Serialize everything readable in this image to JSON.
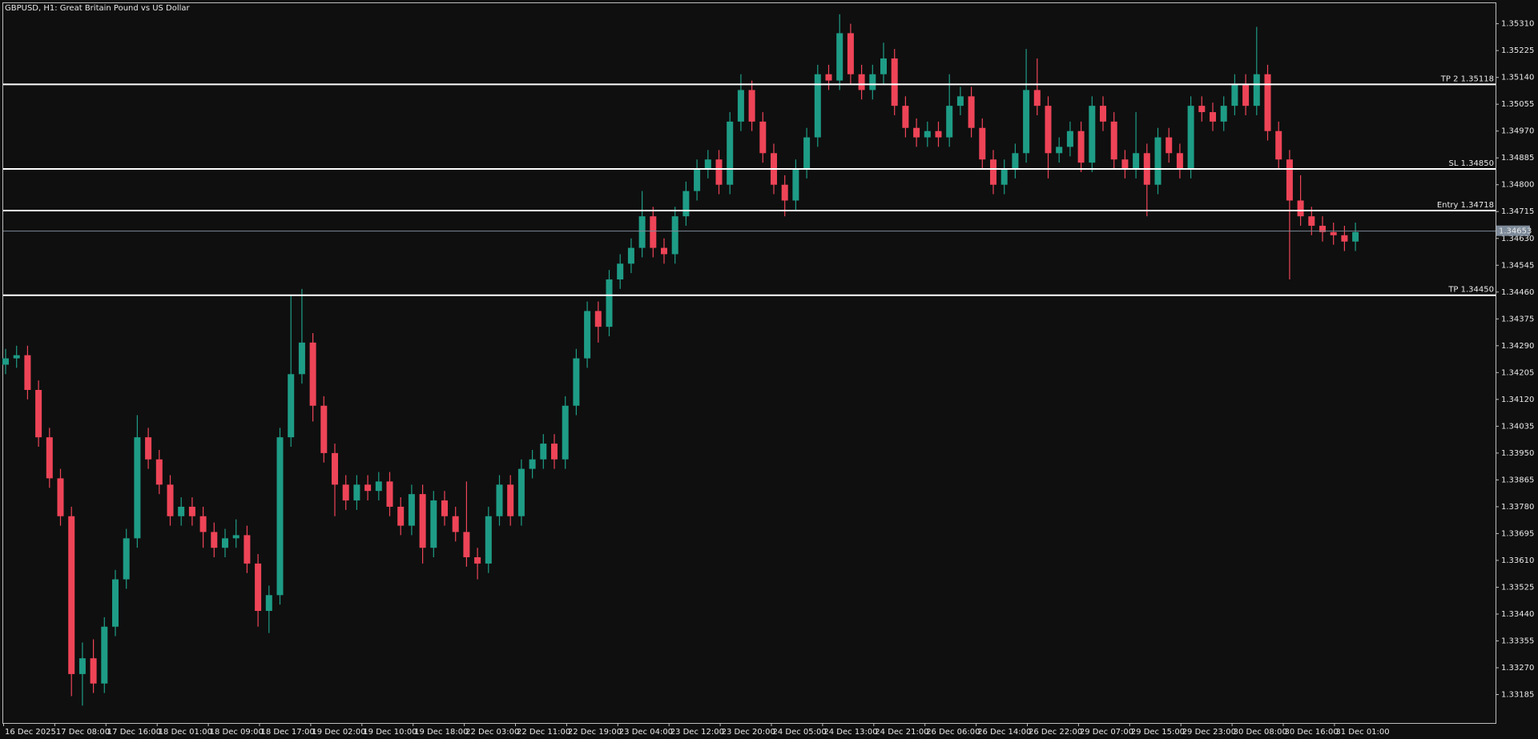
{
  "chart_data": {
    "type": "candlestick",
    "title": "GBPUSD, H1:  Great Britain Pound vs US Dollar",
    "bull_color": "#1e9c86",
    "bear_color": "#ee4457",
    "xticks": [
      "16 Dec 2025",
      "17 Dec 08:00",
      "17 Dec 16:00",
      "18 Dec 01:00",
      "18 Dec 09:00",
      "18 Dec 17:00",
      "19 Dec 02:00",
      "19 Dec 10:00",
      "19 Dec 18:00",
      "22 Dec 03:00",
      "22 Dec 11:00",
      "22 Dec 19:00",
      "23 Dec 04:00",
      "23 Dec 12:00",
      "23 Dec 20:00",
      "24 Dec 05:00",
      "24 Dec 13:00",
      "24 Dec 21:00",
      "26 Dec 06:00",
      "26 Dec 14:00",
      "26 Dec 22:00",
      "29 Dec 07:00",
      "29 Dec 15:00",
      "29 Dec 23:00",
      "30 Dec 08:00",
      "30 Dec 16:00",
      "31 Dec 01:00"
    ],
    "ylim": [
      1.33095,
      1.35375
    ],
    "yticks": [
      {
        "value": 1.3531,
        "label": "1.35310"
      },
      {
        "value": 1.35225,
        "label": "1.35225"
      },
      {
        "value": 1.3514,
        "label": "1.35140"
      },
      {
        "value": 1.35055,
        "label": "1.35055"
      },
      {
        "value": 1.3497,
        "label": "1.34970"
      },
      {
        "value": 1.34885,
        "label": "1.34885"
      },
      {
        "value": 1.348,
        "label": "1.34800"
      },
      {
        "value": 1.34715,
        "label": "1.34715"
      },
      {
        "value": 1.3463,
        "label": "1.34630"
      },
      {
        "value": 1.34545,
        "label": "1.34545"
      },
      {
        "value": 1.3446,
        "label": "1.34460"
      },
      {
        "value": 1.34375,
        "label": "1.34375"
      },
      {
        "value": 1.3429,
        "label": "1.34290"
      },
      {
        "value": 1.34205,
        "label": "1.34205"
      },
      {
        "value": 1.3412,
        "label": "1.34120"
      },
      {
        "value": 1.34035,
        "label": "1.34035"
      },
      {
        "value": 1.3395,
        "label": "1.33950"
      },
      {
        "value": 1.33865,
        "label": "1.33865"
      },
      {
        "value": 1.3378,
        "label": "1.33780"
      },
      {
        "value": 1.33695,
        "label": "1.33695"
      },
      {
        "value": 1.3361,
        "label": "1.33610"
      },
      {
        "value": 1.33525,
        "label": "1.33525"
      },
      {
        "value": 1.3344,
        "label": "1.33440"
      },
      {
        "value": 1.33355,
        "label": "1.33355"
      },
      {
        "value": 1.3327,
        "label": "1.33270"
      },
      {
        "value": 1.33185,
        "label": "1.33185"
      }
    ],
    "levels": [
      {
        "value": 1.35118,
        "label": "TP 2 1.35118"
      },
      {
        "value": 1.3485,
        "label": "SL 1.34850"
      },
      {
        "value": 1.34718,
        "label": "Entry 1.34718"
      },
      {
        "value": 1.3445,
        "label": "TP 1.34450"
      }
    ],
    "price_line": {
      "value": 1.34653,
      "label": "1.34653"
    },
    "open": [
      1.3423,
      1.3425,
      1.3426,
      1.3415,
      1.34,
      1.3387,
      1.3375,
      1.3325,
      1.333,
      1.3322,
      1.334,
      1.3355,
      1.3368,
      1.34,
      1.3393,
      1.3385,
      1.3375,
      1.3378,
      1.3375,
      1.337,
      1.3365,
      1.3368,
      1.3369,
      1.336,
      1.3345,
      1.335,
      1.34,
      1.342,
      1.343,
      1.341,
      1.3395,
      1.3385,
      1.338,
      1.3385,
      1.3383,
      1.3386,
      1.3378,
      1.3372,
      1.3382,
      1.3365,
      1.338,
      1.3375,
      1.337,
      1.3362,
      1.336,
      1.3375,
      1.3385,
      1.3375,
      1.339,
      1.3393,
      1.3398,
      1.3393,
      1.341,
      1.3425,
      1.344,
      1.3435,
      1.345,
      1.3455,
      1.346,
      1.347,
      1.346,
      1.3458,
      1.347,
      1.3478,
      1.3485,
      1.3488,
      1.348,
      1.35,
      1.351,
      1.35,
      1.349,
      1.348,
      1.3475,
      1.3485,
      1.3495,
      1.3515,
      1.3513,
      1.3528,
      1.3515,
      1.351,
      1.3515,
      1.352,
      1.3505,
      1.3498,
      1.3495,
      1.3497,
      1.3495,
      1.3505,
      1.3508,
      1.3498,
      1.3488,
      1.348,
      1.3485,
      1.349,
      1.351,
      1.3505,
      1.349,
      1.3492,
      1.3497,
      1.3487,
      1.3505,
      1.35,
      1.3488,
      1.3485,
      1.349,
      1.348,
      1.3495,
      1.349,
      1.3485,
      1.3505,
      1.3503,
      1.35,
      1.3505,
      1.3512,
      1.3505,
      1.3515,
      1.3497,
      1.3488,
      1.3475,
      1.347,
      1.3467,
      1.3465,
      1.3464,
      1.3462
    ],
    "high": [
      1.3428,
      1.3429,
      1.3429,
      1.3418,
      1.3403,
      1.339,
      1.3378,
      1.3335,
      1.3336,
      1.3343,
      1.3358,
      1.3371,
      1.3407,
      1.3403,
      1.3396,
      1.3388,
      1.3381,
      1.3381,
      1.3378,
      1.3373,
      1.3371,
      1.3374,
      1.3372,
      1.3363,
      1.3353,
      1.3403,
      1.3445,
      1.3447,
      1.3433,
      1.3413,
      1.3398,
      1.3388,
      1.3388,
      1.3388,
      1.3389,
      1.3389,
      1.3381,
      1.3385,
      1.3385,
      1.3383,
      1.3383,
      1.3378,
      1.3386,
      1.3365,
      1.3378,
      1.3388,
      1.3388,
      1.3393,
      1.3396,
      1.3401,
      1.3401,
      1.3413,
      1.3428,
      1.3443,
      1.3443,
      1.3453,
      1.3458,
      1.3463,
      1.3478,
      1.3473,
      1.3463,
      1.3473,
      1.3481,
      1.3488,
      1.3491,
      1.3491,
      1.3503,
      1.3515,
      1.3513,
      1.3503,
      1.3493,
      1.3483,
      1.3488,
      1.3498,
      1.3518,
      1.3518,
      1.3534,
      1.3531,
      1.3518,
      1.3518,
      1.3525,
      1.3523,
      1.3508,
      1.3501,
      1.35,
      1.35,
      1.3515,
      1.3511,
      1.3511,
      1.3501,
      1.3491,
      1.3488,
      1.3493,
      1.3523,
      1.352,
      1.3508,
      1.3495,
      1.35,
      1.35,
      1.3508,
      1.3508,
      1.3503,
      1.3491,
      1.3503,
      1.3493,
      1.3498,
      1.3498,
      1.3493,
      1.3508,
      1.3508,
      1.3506,
      1.3508,
      1.3515,
      1.3515,
      1.353,
      1.3518,
      1.35,
      1.3491,
      1.3483,
      1.3473,
      1.347,
      1.3468,
      1.3467,
      1.3468
    ],
    "low": [
      1.342,
      1.3422,
      1.3412,
      1.3397,
      1.3384,
      1.3372,
      1.3318,
      1.3315,
      1.3319,
      1.3319,
      1.3337,
      1.3352,
      1.3365,
      1.339,
      1.3382,
      1.3372,
      1.3372,
      1.3372,
      1.3365,
      1.3362,
      1.3362,
      1.3365,
      1.3357,
      1.334,
      1.3338,
      1.3347,
      1.3397,
      1.3417,
      1.3405,
      1.3392,
      1.3375,
      1.3377,
      1.3377,
      1.338,
      1.338,
      1.3375,
      1.3369,
      1.3369,
      1.336,
      1.3362,
      1.3372,
      1.3367,
      1.3359,
      1.3355,
      1.3357,
      1.3372,
      1.3372,
      1.3372,
      1.3387,
      1.339,
      1.339,
      1.339,
      1.3407,
      1.3422,
      1.343,
      1.3432,
      1.3447,
      1.3452,
      1.3457,
      1.3457,
      1.3455,
      1.3455,
      1.3467,
      1.3475,
      1.3482,
      1.3477,
      1.3477,
      1.3497,
      1.3497,
      1.3487,
      1.3477,
      1.347,
      1.3472,
      1.3482,
      1.3492,
      1.351,
      1.351,
      1.3512,
      1.3507,
      1.3507,
      1.3512,
      1.3502,
      1.3495,
      1.3492,
      1.3492,
      1.3492,
      1.3492,
      1.3502,
      1.3495,
      1.3485,
      1.3477,
      1.3477,
      1.3482,
      1.3487,
      1.3502,
      1.3482,
      1.3487,
      1.3489,
      1.3484,
      1.3484,
      1.3497,
      1.3485,
      1.3482,
      1.3482,
      1.347,
      1.3477,
      1.3487,
      1.3482,
      1.3482,
      1.35,
      1.3497,
      1.3497,
      1.3502,
      1.3502,
      1.3502,
      1.3494,
      1.3485,
      1.345,
      1.3467,
      1.3464,
      1.3462,
      1.3461,
      1.3459,
      1.3459
    ],
    "close": [
      1.3425,
      1.3426,
      1.3415,
      1.34,
      1.3387,
      1.3375,
      1.3325,
      1.333,
      1.3322,
      1.334,
      1.3355,
      1.3368,
      1.34,
      1.3393,
      1.3385,
      1.3375,
      1.3378,
      1.3375,
      1.337,
      1.3365,
      1.3368,
      1.3369,
      1.336,
      1.3345,
      1.335,
      1.34,
      1.342,
      1.343,
      1.341,
      1.3395,
      1.3385,
      1.338,
      1.3385,
      1.3383,
      1.3386,
      1.3378,
      1.3372,
      1.3382,
      1.3365,
      1.338,
      1.3375,
      1.337,
      1.3362,
      1.336,
      1.3375,
      1.3385,
      1.3375,
      1.339,
      1.3393,
      1.3398,
      1.3393,
      1.341,
      1.3425,
      1.344,
      1.3435,
      1.345,
      1.3455,
      1.346,
      1.347,
      1.346,
      1.3458,
      1.347,
      1.3478,
      1.3485,
      1.3488,
      1.348,
      1.35,
      1.351,
      1.35,
      1.349,
      1.348,
      1.3475,
      1.3485,
      1.3495,
      1.3515,
      1.3513,
      1.3528,
      1.3515,
      1.351,
      1.3515,
      1.352,
      1.3505,
      1.3498,
      1.3495,
      1.3497,
      1.3495,
      1.3505,
      1.3508,
      1.3498,
      1.3488,
      1.348,
      1.3485,
      1.349,
      1.351,
      1.3505,
      1.349,
      1.3492,
      1.3497,
      1.3487,
      1.3505,
      1.35,
      1.3488,
      1.3485,
      1.349,
      1.348,
      1.3495,
      1.349,
      1.3485,
      1.3505,
      1.3503,
      1.35,
      1.3505,
      1.3512,
      1.3505,
      1.3515,
      1.3497,
      1.3488,
      1.3475,
      1.347,
      1.3467,
      1.3465,
      1.3464,
      1.3462,
      1.3465
    ]
  }
}
